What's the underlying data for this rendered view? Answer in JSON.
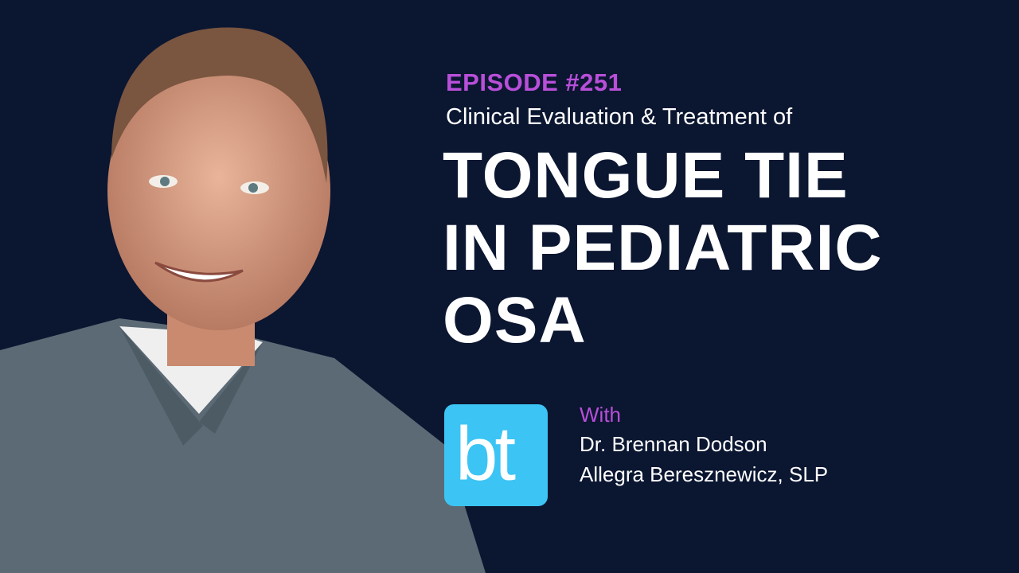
{
  "header": {
    "episode": "EPISODE #251",
    "subtitle": "Clinical Evaluation & Treatment of",
    "title_lines": [
      "TONGUE TIE",
      "IN PEDIATRIC",
      "OSA"
    ]
  },
  "logo": {
    "text": "bt"
  },
  "guests": {
    "intro": "With",
    "names": [
      "Dr. Brennan Dodson",
      "Allegra Beresznewicz, SLP"
    ]
  }
}
